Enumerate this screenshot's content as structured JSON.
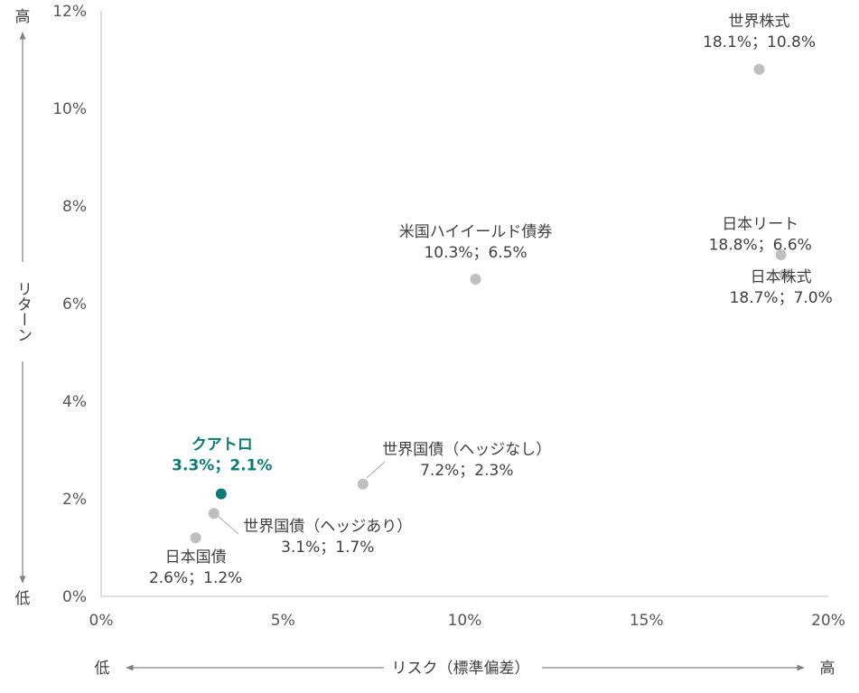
{
  "chart_data": {
    "type": "scatter",
    "xlabel": "リスク（標準偏差）",
    "ylabel": "リターン",
    "x_low_label": "低",
    "x_high_label": "高",
    "y_low_label": "低",
    "y_high_label": "高",
    "xlim": [
      0,
      20
    ],
    "ylim": [
      0,
      12
    ],
    "x_ticks": [
      "0%",
      "5%",
      "10%",
      "15%",
      "20%"
    ],
    "y_ticks": [
      "0%",
      "2%",
      "4%",
      "6%",
      "8%",
      "10%",
      "12%"
    ],
    "grid": false,
    "colors": {
      "point": "#bfbfbf",
      "highlight": "#0b7b76",
      "axis": "#bfbfbf"
    },
    "points": [
      {
        "name": "世界株式",
        "value_label": "18.1%；10.8%",
        "x": 18.1,
        "y": 10.8,
        "highlight": false
      },
      {
        "name": "日本リート",
        "value_label": "18.8%；6.6%",
        "x": 18.8,
        "y": 6.6,
        "highlight": false
      },
      {
        "name": "日本株式",
        "value_label": "18.7%；7.0%",
        "x": 18.7,
        "y": 7.0,
        "highlight": false
      },
      {
        "name": "米国ハイイールド債券",
        "value_label": "10.3%；6.5%",
        "x": 10.3,
        "y": 6.5,
        "highlight": false
      },
      {
        "name": "世界国債（ヘッジなし）",
        "value_label": "7.2%；2.3%",
        "x": 7.2,
        "y": 2.3,
        "highlight": false
      },
      {
        "name": "世界国債（ヘッジあり）",
        "value_label": "3.1%；1.7%",
        "x": 3.1,
        "y": 1.7,
        "highlight": false
      },
      {
        "name": "日本国債",
        "value_label": "2.6%；1.2%",
        "x": 2.6,
        "y": 1.2,
        "highlight": false
      },
      {
        "name": "クアトロ",
        "value_label": "3.3%；2.1%",
        "x": 3.3,
        "y": 2.1,
        "highlight": true
      }
    ]
  }
}
